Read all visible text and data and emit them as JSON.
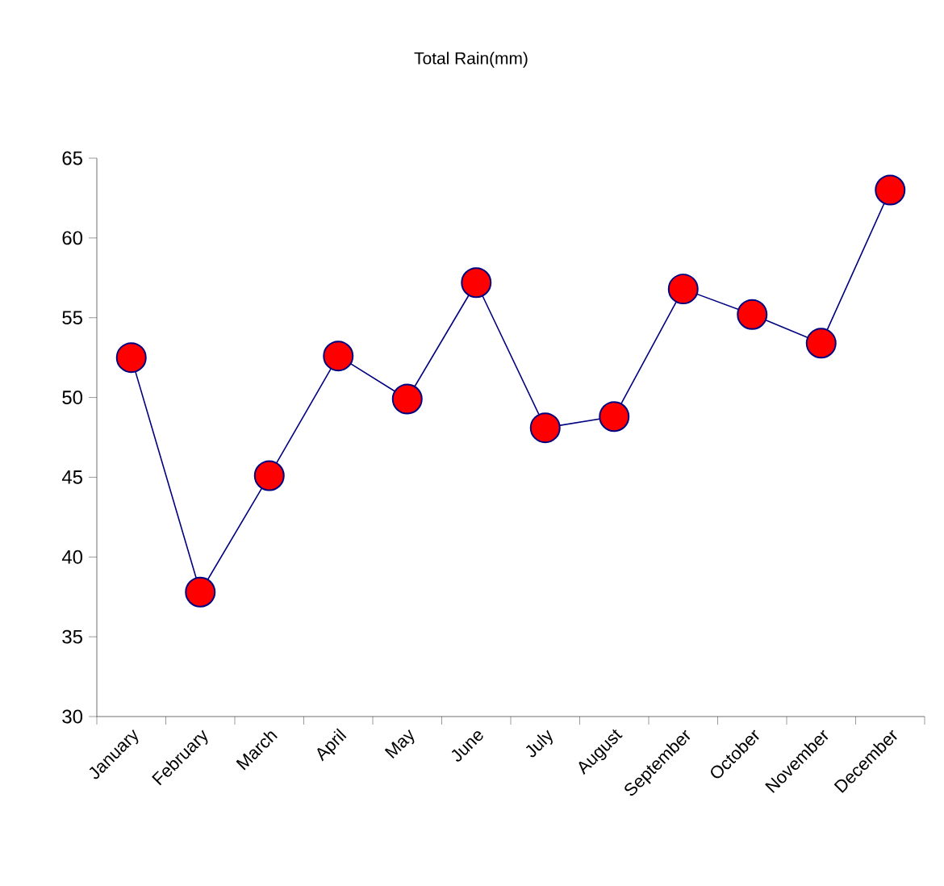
{
  "chart_data": {
    "type": "line",
    "title": "Total Rain(mm)",
    "categories": [
      "January",
      "February",
      "March",
      "April",
      "May",
      "June",
      "July",
      "August",
      "September",
      "October",
      "November",
      "December"
    ],
    "series": [
      {
        "color": "#000080",
        "values": [
          52.5,
          37.8,
          45.1,
          52.6,
          49.9,
          57.2,
          48.1,
          48.8,
          56.8,
          55.2,
          53.4,
          63.0
        ]
      }
    ],
    "marker": "circle",
    "line_style": "solid",
    "ylim": [
      30,
      65
    ],
    "yticks": [
      30,
      35,
      40,
      45,
      50,
      55,
      60,
      65
    ],
    "grid": false
  }
}
